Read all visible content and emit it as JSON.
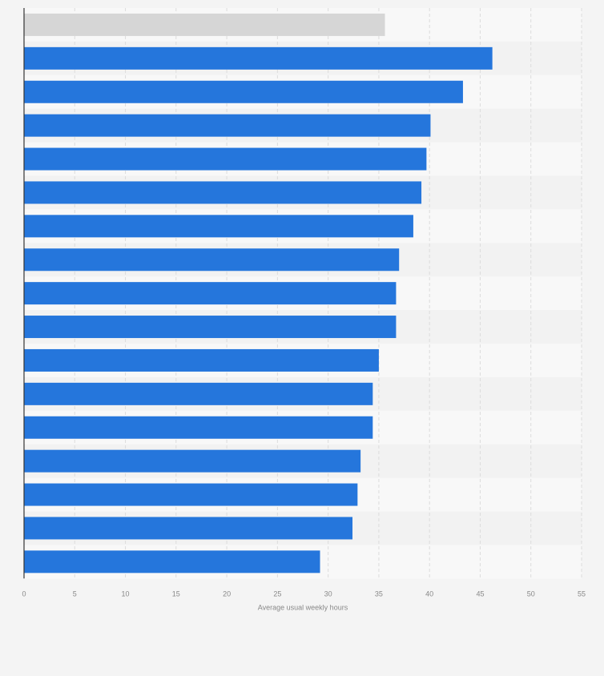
{
  "chart_data": {
    "type": "bar",
    "orientation": "horizontal",
    "xlabel": "Average usual weekly hours",
    "xlim": [
      0,
      55
    ],
    "x_ticks": [
      "0",
      "5",
      "10",
      "15",
      "20",
      "25",
      "30",
      "35",
      "40",
      "45",
      "50",
      "55"
    ],
    "grid": true,
    "values": [
      35.6,
      46.2,
      43.3,
      40.1,
      39.7,
      39.2,
      38.4,
      37.0,
      36.7,
      36.7,
      35.0,
      34.4,
      34.4,
      33.2,
      32.9,
      32.4,
      29.2
    ],
    "highlight_index": 0,
    "colors": {
      "bar": "#2576dc",
      "highlight_bar": "#d6d6d6",
      "background": "#f4f4f4",
      "band_light": "#f8f8f8",
      "band_dark": "#f2f2f2",
      "grid": "#dcdcdc",
      "axis": "#333333",
      "tick_text": "#888888"
    }
  }
}
